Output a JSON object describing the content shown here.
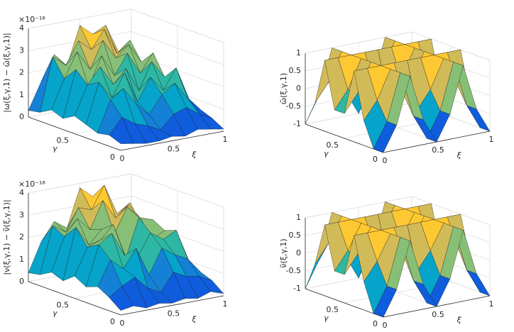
{
  "chart_data": [
    {
      "type": "surface",
      "zlabel": "|ω(ξ,γ,1) − ω̃(ξ,γ,1)|",
      "zexponent": "×10⁻¹⁸",
      "xlabel": "ξ",
      "ylabel": "γ",
      "x": [
        0,
        0.125,
        0.25,
        0.375,
        0.5,
        0.625,
        0.75,
        0.875,
        1
      ],
      "y": [
        0,
        0.125,
        0.25,
        0.375,
        0.5,
        0.625,
        0.75,
        0.875,
        1
      ],
      "z": [
        [
          0.3,
          0.2,
          0.1,
          0.1,
          0.2,
          0.1,
          0.3,
          0.2,
          0.1
        ],
        [
          0.5,
          1.2,
          0.8,
          0.6,
          0.3,
          0.9,
          1.1,
          0.7,
          0.4
        ],
        [
          0.4,
          1.8,
          2.2,
          1.4,
          0.8,
          1.6,
          2.0,
          1.2,
          0.6
        ],
        [
          0.6,
          2.4,
          1.6,
          2.6,
          1.2,
          2.2,
          1.5,
          2.4,
          0.9
        ],
        [
          0.8,
          2.1,
          2.8,
          1.9,
          2.5,
          1.4,
          2.6,
          1.8,
          1.1
        ],
        [
          0.5,
          2.6,
          1.7,
          3.0,
          2.0,
          2.9,
          1.9,
          2.7,
          1.3
        ],
        [
          0.7,
          2.0,
          3.1,
          2.2,
          3.4,
          2.5,
          3.0,
          2.1,
          1.0
        ],
        [
          0.4,
          2.8,
          2.3,
          3.3,
          2.8,
          3.6,
          2.4,
          2.9,
          1.4
        ],
        [
          0.3,
          1.5,
          2.6,
          2.0,
          3.7,
          3.2,
          3.5,
          2.2,
          0.8
        ]
      ],
      "xlim": [
        0,
        1
      ],
      "ylim": [
        0,
        1
      ],
      "zlim": [
        0,
        4
      ],
      "xticks": [
        0,
        0.5,
        1
      ],
      "yticks": [
        0,
        0.5
      ],
      "zticks": [
        0,
        1,
        2,
        3,
        4
      ]
    },
    {
      "type": "surface",
      "zlabel": "ω̃(ξ,γ,1)",
      "xlabel": "ξ",
      "ylabel": "γ",
      "x": [
        0,
        0.125,
        0.25,
        0.375,
        0.5,
        0.625,
        0.75,
        0.875,
        1
      ],
      "y": [
        0,
        0.125,
        0.25,
        0.375,
        0.5,
        0.625,
        0.75,
        0.875,
        1
      ],
      "z": [
        [
          -1,
          -0.3,
          1,
          -0.3,
          -1,
          -0.3,
          1,
          -0.3,
          -1
        ],
        [
          -1,
          -0.3,
          1,
          -0.3,
          -1,
          -0.3,
          1,
          -0.3,
          -1
        ],
        [
          -0.3,
          0.2,
          1,
          0.2,
          -0.3,
          0.2,
          1,
          0.2,
          -0.3
        ],
        [
          1,
          1,
          1,
          1,
          1,
          1,
          1,
          1,
          1
        ],
        [
          -0.3,
          0.2,
          1,
          0.2,
          -0.3,
          0.2,
          1,
          0.2,
          -0.3
        ],
        [
          -0.3,
          0.2,
          1,
          0.2,
          -0.3,
          0.2,
          1,
          0.2,
          -0.3
        ],
        [
          1,
          1,
          1,
          1,
          1,
          1,
          1,
          1,
          1
        ],
        [
          -0.3,
          0.2,
          1,
          0.2,
          -0.3,
          0.2,
          1,
          0.2,
          -0.3
        ],
        [
          -1,
          -0.3,
          1,
          -0.3,
          -1,
          -0.3,
          1,
          -0.3,
          -1
        ]
      ],
      "xlim": [
        0,
        1
      ],
      "ylim": [
        0,
        1
      ],
      "zlim": [
        -1,
        1
      ],
      "xticks": [
        0,
        0.5,
        1
      ],
      "yticks": [
        0,
        0.5
      ],
      "zticks": [
        -1,
        -0.5,
        0,
        0.5,
        1
      ]
    },
    {
      "type": "surface",
      "zlabel": "|ν(ξ,γ,1) − ν̃(ξ,γ,1)|",
      "zexponent": "×10⁻¹⁸",
      "xlabel": "ξ",
      "ylabel": "γ",
      "x": [
        0,
        0.125,
        0.25,
        0.375,
        0.5,
        0.625,
        0.75,
        0.875,
        1
      ],
      "y": [
        0,
        0.125,
        0.25,
        0.375,
        0.5,
        0.625,
        0.75,
        0.875,
        1
      ],
      "z": [
        [
          0.2,
          0.3,
          0.1,
          0.2,
          0.1,
          0.2,
          0.1,
          0.3,
          0.1
        ],
        [
          0.6,
          1.0,
          1.3,
          0.7,
          0.4,
          1.2,
          0.9,
          0.8,
          0.5
        ],
        [
          0.9,
          2.0,
          1.5,
          2.3,
          1.0,
          2.1,
          1.7,
          1.4,
          0.7
        ],
        [
          0.7,
          2.5,
          2.9,
          1.8,
          1.6,
          2.6,
          2.2,
          2.5,
          1.0
        ],
        [
          1.0,
          2.2,
          2.4,
          3.0,
          1.4,
          3.1,
          2.0,
          2.3,
          1.2
        ],
        [
          0.6,
          2.9,
          2.0,
          2.6,
          2.3,
          3.4,
          2.8,
          2.6,
          1.1
        ],
        [
          0.8,
          2.3,
          3.0,
          2.4,
          3.6,
          2.7,
          3.2,
          2.2,
          1.3
        ],
        [
          0.5,
          2.6,
          2.2,
          3.2,
          3.0,
          4.0,
          2.6,
          3.0,
          1.2
        ],
        [
          0.4,
          1.7,
          2.5,
          2.1,
          3.8,
          3.3,
          3.4,
          2.0,
          0.9
        ]
      ],
      "xlim": [
        0,
        1
      ],
      "ylim": [
        0,
        1
      ],
      "zlim": [
        0,
        4
      ],
      "xticks": [
        0,
        0.5,
        1
      ],
      "yticks": [
        0,
        0.5
      ],
      "zticks": [
        0,
        1,
        2,
        3,
        4
      ]
    },
    {
      "type": "surface",
      "zlabel": "ν̃(ξ,γ,1)",
      "xlabel": "ξ",
      "ylabel": "γ",
      "x": [
        0,
        0.125,
        0.25,
        0.375,
        0.5,
        0.625,
        0.75,
        0.875,
        1
      ],
      "y": [
        0,
        0.125,
        0.25,
        0.375,
        0.5,
        0.625,
        0.75,
        0.875,
        1
      ],
      "z": [
        [
          -1,
          -0.3,
          1,
          -0.3,
          -1,
          -0.3,
          1,
          -0.3,
          -1
        ],
        [
          -1,
          -0.3,
          1,
          -0.3,
          -1,
          -0.3,
          1,
          -0.3,
          -1
        ],
        [
          -0.2,
          0.3,
          1,
          0.3,
          -0.2,
          0.3,
          1,
          0.3,
          -0.2
        ],
        [
          1,
          1,
          1,
          1,
          1,
          1,
          1,
          1,
          1
        ],
        [
          -0.2,
          0.3,
          1,
          0.3,
          -0.2,
          0.3,
          1,
          0.3,
          -0.2
        ],
        [
          -0.2,
          0.3,
          1,
          0.3,
          -0.2,
          0.3,
          1,
          0.3,
          -0.2
        ],
        [
          1,
          1,
          1,
          1,
          1,
          1,
          1,
          1,
          1
        ],
        [
          -0.2,
          0.3,
          1,
          0.3,
          -0.2,
          0.3,
          1,
          0.3,
          -0.2
        ],
        [
          -1,
          -0.3,
          1,
          -0.3,
          -1,
          -0.3,
          1,
          -0.3,
          -1
        ]
      ],
      "xlim": [
        0,
        1
      ],
      "ylim": [
        0,
        1
      ],
      "zlim": [
        -1,
        1
      ],
      "xticks": [
        0,
        0.5,
        1
      ],
      "yticks": [
        0,
        0.5
      ],
      "zticks": [
        -1,
        -0.5,
        0,
        0.5,
        1
      ]
    }
  ],
  "colormap": [
    "#352a87",
    "#0f5cdd",
    "#1481d6",
    "#06a4ca",
    "#2eb7a4",
    "#87bf77",
    "#d1bb59",
    "#fec832",
    "#f9fb0e"
  ]
}
